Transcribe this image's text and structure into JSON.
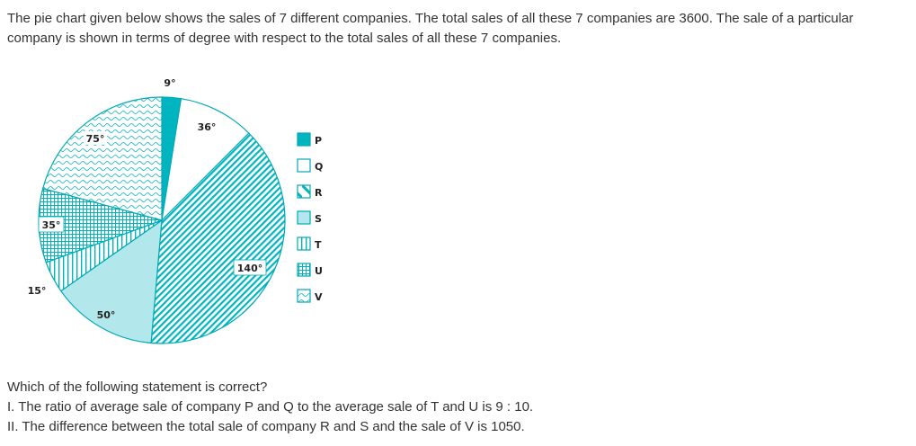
{
  "intro_text": "The pie chart given below shows the sales of 7 different companies. The total sales of all these 7 companies are 3600. The sale of a particular company is shown in terms of degree with respect to the total sales of all these 7 companies.",
  "question": {
    "prompt": "Which of the following statement is correct?",
    "statement_1": "I. The ratio of average sale of company P and Q to the average sale of T and U is 9 : 10.",
    "statement_2": "II. The difference between the total sale of company R and S and the sale of V is 1050."
  },
  "chart_data": {
    "type": "pie",
    "title": "",
    "unit_suffix": "°",
    "categories": [
      "P",
      "Q",
      "R",
      "S",
      "T",
      "U",
      "V"
    ],
    "values": [
      9,
      36,
      140,
      50,
      15,
      35,
      75
    ],
    "data_labels": [
      "9°",
      "36°",
      "140°",
      "50°",
      "15°",
      "35°",
      "75°"
    ],
    "legend": {
      "placement": "right",
      "entries": [
        "P",
        "Q",
        "R",
        "S",
        "T",
        "U",
        "V"
      ]
    },
    "colors": {
      "P": "#00b5bf",
      "Q": "#ffffff",
      "R": "#00b5bf",
      "S": "#b2e8ec",
      "T": "#00b5bf",
      "U": "#00b5bf",
      "V": "#00b5bf"
    },
    "patterns": [
      "solid",
      "blank",
      "diagonal-stripes",
      "light-fill",
      "vertical-lines",
      "grid",
      "wavy-scallops"
    ]
  }
}
